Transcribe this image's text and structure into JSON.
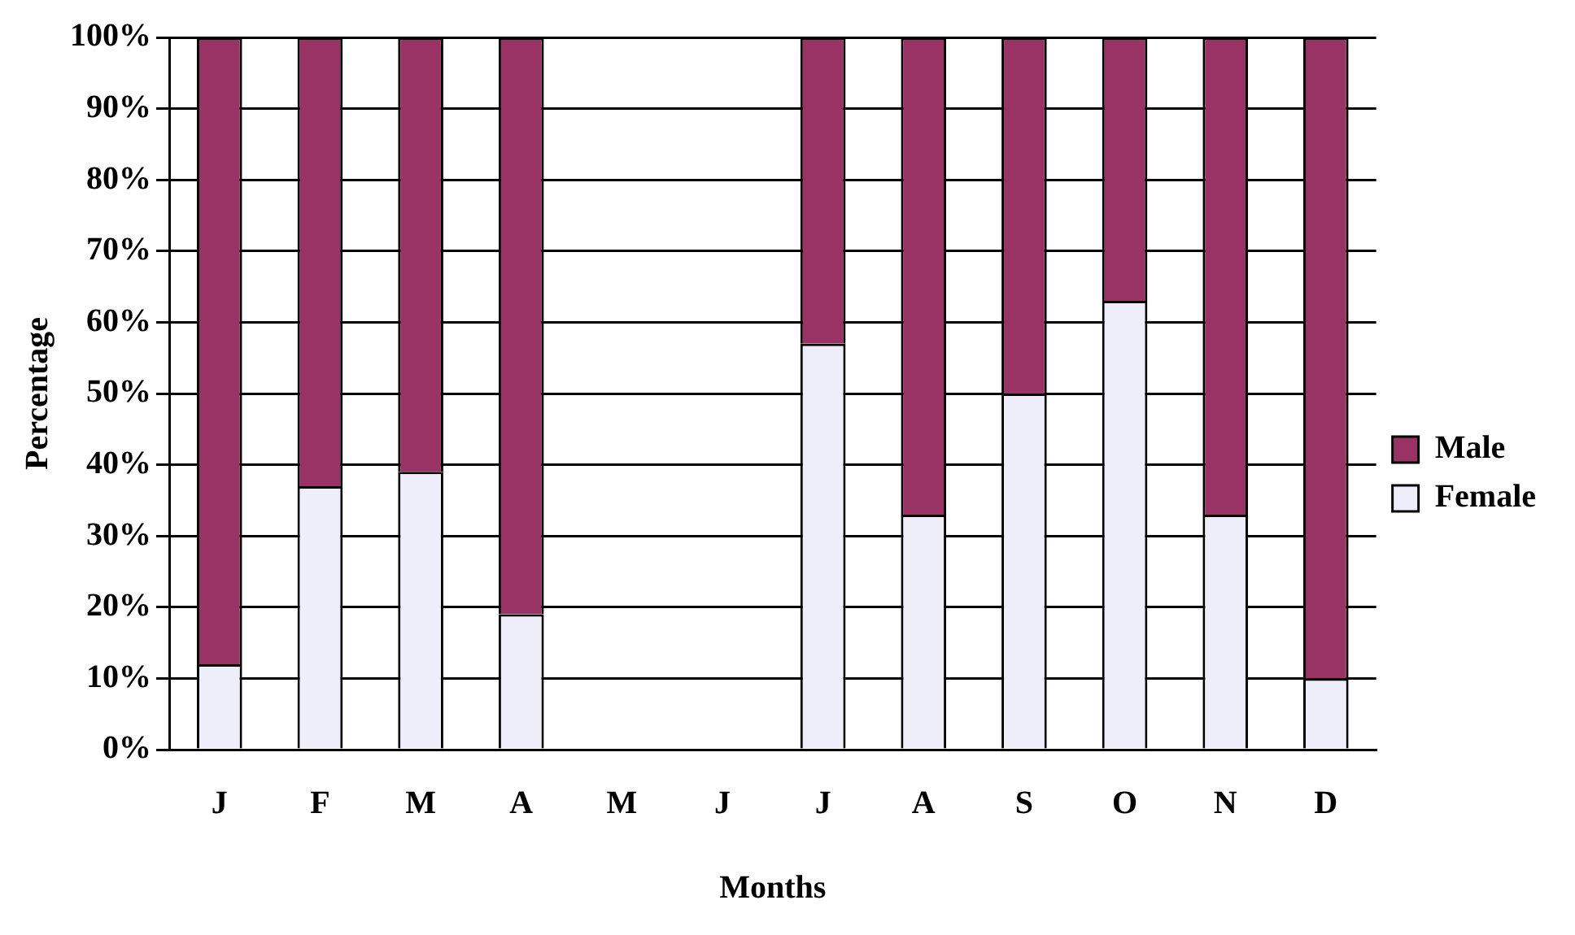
{
  "chart_data": {
    "type": "bar",
    "stacked": true,
    "xlabel": "Months",
    "ylabel": "Percentage",
    "categories": [
      "J",
      "F",
      "M",
      "A",
      "M",
      "J",
      "J",
      "A",
      "S",
      "O",
      "N",
      "D"
    ],
    "series": [
      {
        "name": "Female",
        "color": "#eeeefa",
        "values": [
          12,
          37,
          39,
          19,
          null,
          null,
          57,
          33,
          50,
          63,
          33,
          10
        ]
      },
      {
        "name": "Male",
        "color": "#993366",
        "values": [
          88,
          63,
          61,
          81,
          null,
          null,
          43,
          67,
          50,
          37,
          67,
          90
        ]
      }
    ],
    "ylim": [
      0,
      100
    ],
    "yticks": [
      {
        "value": 0,
        "label": "0%"
      },
      {
        "value": 10,
        "label": "10%"
      },
      {
        "value": 20,
        "label": "20%"
      },
      {
        "value": 30,
        "label": "30%"
      },
      {
        "value": 40,
        "label": "40%"
      },
      {
        "value": 50,
        "label": "50%"
      },
      {
        "value": 60,
        "label": "60%"
      },
      {
        "value": 70,
        "label": "70%"
      },
      {
        "value": 80,
        "label": "80%"
      },
      {
        "value": 90,
        "label": "90%"
      },
      {
        "value": 100,
        "label": "100%"
      }
    ],
    "grid": "y",
    "legend": "right"
  }
}
